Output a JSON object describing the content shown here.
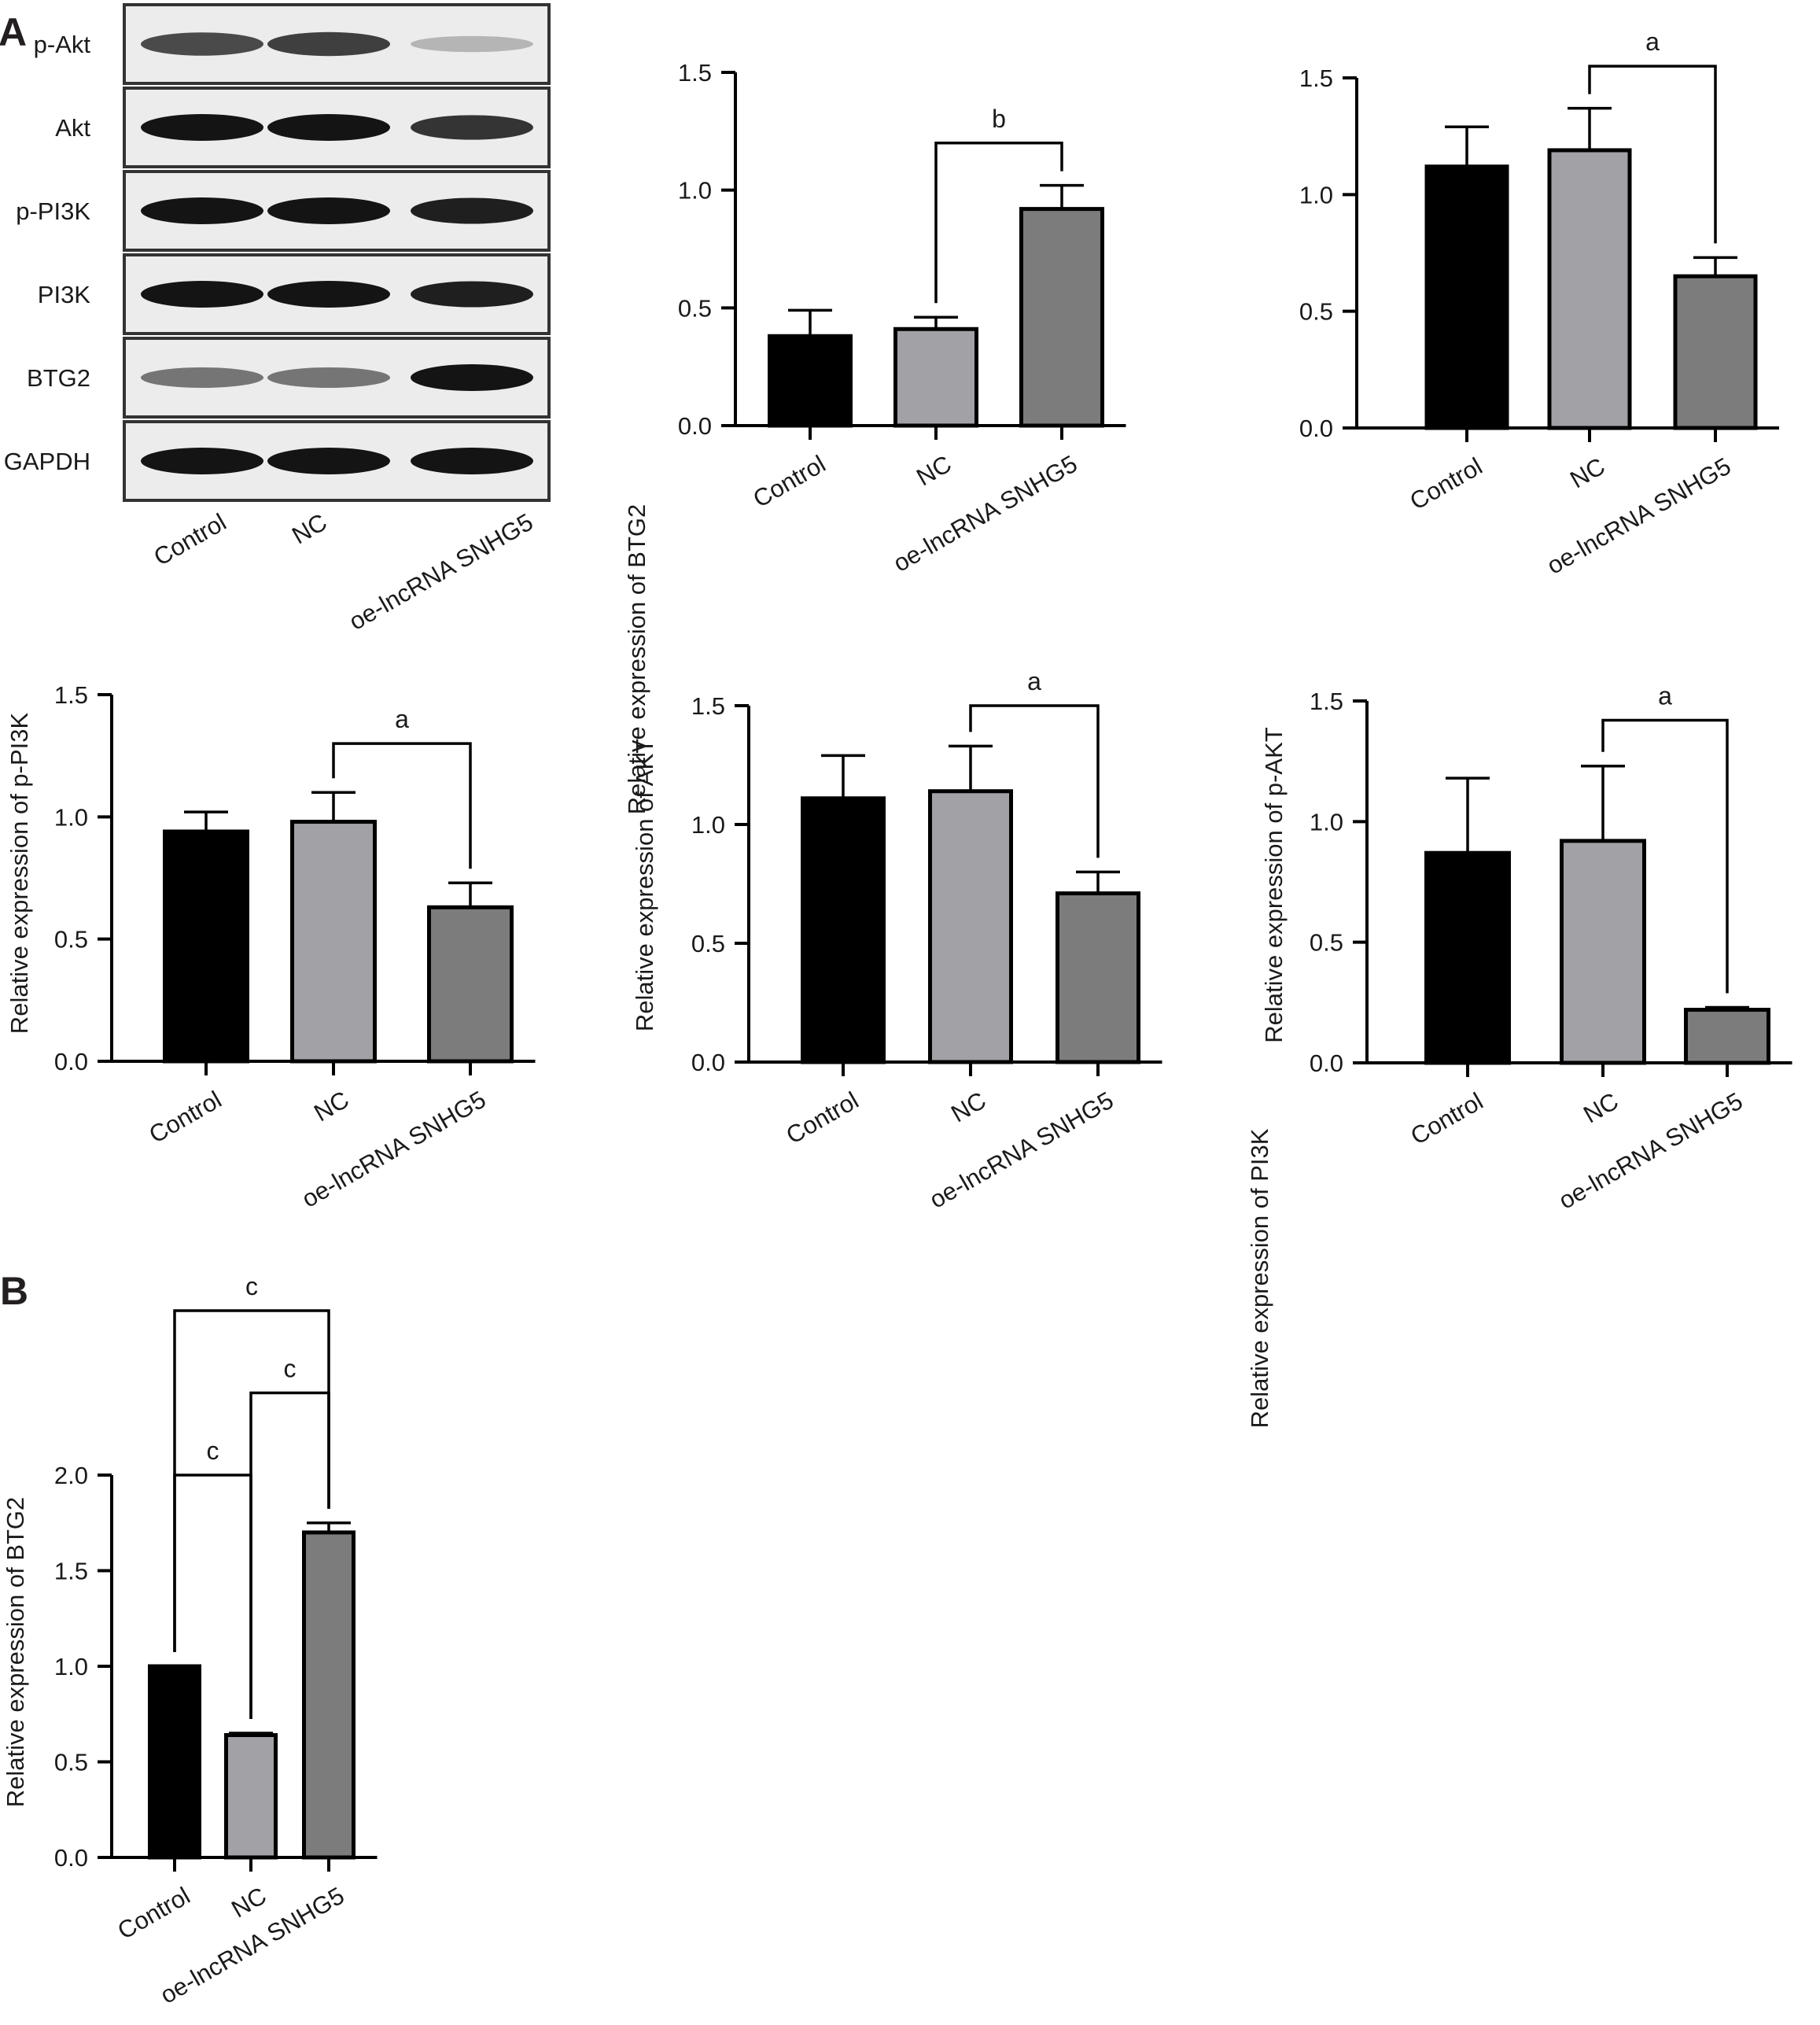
{
  "figure": {
    "panel_labels": [
      "A",
      "B"
    ]
  },
  "western_blot": {
    "rows": [
      {
        "label": "p-Akt",
        "intensity": [
          0.75,
          0.8,
          0.25
        ]
      },
      {
        "label": "Akt",
        "intensity": [
          1.0,
          1.0,
          0.85
        ]
      },
      {
        "label": "p-PI3K",
        "intensity": [
          1.0,
          1.0,
          0.95
        ]
      },
      {
        "label": "PI3K",
        "intensity": [
          1.0,
          1.0,
          0.95
        ]
      },
      {
        "label": "BTG2",
        "intensity": [
          0.55,
          0.55,
          1.0
        ]
      },
      {
        "label": "GAPDH",
        "intensity": [
          1.0,
          1.0,
          1.0
        ]
      }
    ],
    "lanes": [
      "Control",
      "NC",
      "oe-lncRNA SNHG5"
    ]
  },
  "colors": {
    "control": "#000000",
    "nc": "#a1a1a6",
    "oe": "#7c7c7c",
    "outline": "#000000"
  },
  "chart_data": [
    {
      "type": "bar",
      "panel": "A",
      "ylabel": "Relative expression of BTG2",
      "categories": [
        "Control",
        "NC",
        "oe-lncRNA SNHG5"
      ],
      "values": [
        0.38,
        0.41,
        0.92
      ],
      "errors": [
        0.11,
        0.05,
        0.1
      ],
      "ylim": [
        0,
        1.5
      ],
      "yticks": [
        "0.0",
        "0.5",
        "1.0",
        "1.5"
      ],
      "significance": [
        {
          "from": 1,
          "to": 2,
          "label": "b",
          "level": 1.2
        }
      ]
    },
    {
      "type": "bar",
      "panel": "A",
      "ylabel": "Relative expression of PI3K",
      "categories": [
        "Control",
        "NC",
        "oe-lncRNA SNHG5"
      ],
      "values": [
        1.12,
        1.19,
        0.65
      ],
      "errors": [
        0.17,
        0.18,
        0.08
      ],
      "ylim": [
        0,
        1.5
      ],
      "yticks": [
        "0.0",
        "0.5",
        "1.0",
        "1.5"
      ],
      "significance": [
        {
          "from": 1,
          "to": 2,
          "label": "a",
          "level": 1.55
        }
      ]
    },
    {
      "type": "bar",
      "panel": "A",
      "ylabel": "Relative expression of p-PI3K",
      "categories": [
        "Control",
        "NC",
        "oe-lncRNA SNHG5"
      ],
      "values": [
        0.94,
        0.98,
        0.63
      ],
      "errors": [
        0.08,
        0.12,
        0.1
      ],
      "ylim": [
        0,
        1.5
      ],
      "yticks": [
        "0.0",
        "0.5",
        "1.0",
        "1.5"
      ],
      "significance": [
        {
          "from": 1,
          "to": 2,
          "label": "a",
          "level": 1.3
        }
      ]
    },
    {
      "type": "bar",
      "panel": "A",
      "ylabel": "Relative expression of AKT",
      "categories": [
        "Control",
        "NC",
        "oe-lncRNA SNHG5"
      ],
      "values": [
        1.11,
        1.14,
        0.71
      ],
      "errors": [
        0.18,
        0.19,
        0.09
      ],
      "ylim": [
        0,
        1.5
      ],
      "yticks": [
        "0.0",
        "0.5",
        "1.0",
        "1.5"
      ],
      "significance": [
        {
          "from": 1,
          "to": 2,
          "label": "a",
          "level": 1.5
        }
      ]
    },
    {
      "type": "bar",
      "panel": "A",
      "ylabel": "Relative expression of p-AKT",
      "categories": [
        "Control",
        "NC",
        "oe-lncRNA SNHG5"
      ],
      "values": [
        0.87,
        0.92,
        0.22
      ],
      "errors": [
        0.31,
        0.31,
        0.01
      ],
      "ylim": [
        0,
        1.5
      ],
      "yticks": [
        "0.0",
        "0.5",
        "1.0",
        "1.5"
      ],
      "significance": [
        {
          "from": 1,
          "to": 2,
          "label": "a",
          "level": 1.42
        }
      ]
    },
    {
      "type": "bar",
      "panel": "B",
      "ylabel": "Relative expression of BTG2",
      "categories": [
        "Control",
        "NC",
        "oe-lncRNA SNHG5"
      ],
      "values": [
        1.0,
        0.64,
        1.7
      ],
      "errors": [
        0.0,
        0.01,
        0.05
      ],
      "ylim": [
        0,
        2.0
      ],
      "yticks": [
        "0.0",
        "0.5",
        "1.0",
        "1.5",
        "2.0"
      ],
      "significance": [
        {
          "from": 0,
          "to": 1,
          "label": "c",
          "level": 2.0
        },
        {
          "from": 1,
          "to": 2,
          "label": "c",
          "level": 2.43
        },
        {
          "from": 0,
          "to": 2,
          "label": "c",
          "level": 2.86
        }
      ]
    }
  ]
}
